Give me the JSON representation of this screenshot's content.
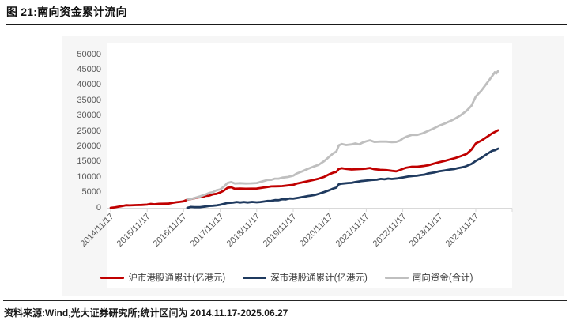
{
  "page": {
    "title": "图 21:南向资金累计流向",
    "source_note": "资料来源:Wind,光大证券研究所;统计区间为 2014.11.17-2025.06.27"
  },
  "colors": {
    "shanghai_red": "#C00000",
    "shenzhen_navy": "#1F3A5F",
    "total_gray": "#BFBFBF",
    "axis_line": "#D9D9D9",
    "axis_label": "#595959",
    "legend_text": "#404040",
    "figure_bg": "#F6F6F6",
    "title_rule": "#1A1A1A"
  },
  "chart_data": {
    "type": "line",
    "title": "南向资金累计流向",
    "xlabel": "",
    "ylabel": "",
    "ylim": [
      0,
      50000
    ],
    "y_ticks": [
      0,
      5000,
      10000,
      15000,
      20000,
      25000,
      30000,
      35000,
      40000,
      45000,
      50000
    ],
    "x_tick_labels": [
      "2014/11/17",
      "2015/11/17",
      "2016/11/17",
      "2017/11/17",
      "2018/11/17",
      "2019/11/17",
      "2020/11/17",
      "2021/11/17",
      "2022/11/17",
      "2023/11/17",
      "2024/11/17"
    ],
    "x_unit_note": "points use t = years since 2014/11/17; data range 2014.11.17-2025.06.27",
    "grid": false,
    "legend_position": "bottom",
    "series": [
      {
        "name": "沪市港股通累计(亿港元)",
        "color": "#C00000",
        "points": [
          [
            0,
            0
          ],
          [
            0.12,
            150
          ],
          [
            0.3,
            550
          ],
          [
            0.42,
            850
          ],
          [
            0.52,
            800
          ],
          [
            0.7,
            900
          ],
          [
            0.85,
            950
          ],
          [
            1,
            1050
          ],
          [
            1.2,
            1150
          ],
          [
            1.45,
            1350
          ],
          [
            1.7,
            1650
          ],
          [
            1.9,
            1950
          ],
          [
            2,
            2150
          ],
          [
            2.1,
            2650
          ],
          [
            2.25,
            3000
          ],
          [
            2.4,
            3400
          ],
          [
            2.6,
            3900
          ],
          [
            2.8,
            4400
          ],
          [
            3,
            5000
          ],
          [
            3.1,
            5600
          ],
          [
            3.2,
            6500
          ],
          [
            3.3,
            6700
          ],
          [
            3.4,
            6200
          ],
          [
            3.55,
            6300
          ],
          [
            3.7,
            6200
          ],
          [
            3.85,
            6250
          ],
          [
            4,
            6300
          ],
          [
            4.15,
            6550
          ],
          [
            4.3,
            6800
          ],
          [
            4.5,
            7000
          ],
          [
            4.7,
            7100
          ],
          [
            4.85,
            7300
          ],
          [
            5,
            7500
          ],
          [
            5.1,
            7900
          ],
          [
            5.25,
            8300
          ],
          [
            5.4,
            8700
          ],
          [
            5.55,
            9100
          ],
          [
            5.7,
            9500
          ],
          [
            5.85,
            10100
          ],
          [
            6,
            11000
          ],
          [
            6.1,
            11500
          ],
          [
            6.18,
            11700
          ],
          [
            6.25,
            12700
          ],
          [
            6.33,
            12900
          ],
          [
            6.45,
            12700
          ],
          [
            6.6,
            12500
          ],
          [
            6.75,
            12600
          ],
          [
            6.9,
            12700
          ],
          [
            7,
            12800
          ],
          [
            7.1,
            13000
          ],
          [
            7.22,
            12600
          ],
          [
            7.38,
            12400
          ],
          [
            7.55,
            12300
          ],
          [
            7.7,
            12050
          ],
          [
            7.82,
            11900
          ],
          [
            7.92,
            12300
          ],
          [
            8,
            12700
          ],
          [
            8.1,
            13100
          ],
          [
            8.25,
            13400
          ],
          [
            8.4,
            13400
          ],
          [
            8.55,
            13600
          ],
          [
            8.7,
            13900
          ],
          [
            8.85,
            14400
          ],
          [
            9,
            14900
          ],
          [
            9.15,
            15300
          ],
          [
            9.3,
            15800
          ],
          [
            9.45,
            16300
          ],
          [
            9.6,
            16900
          ],
          [
            9.75,
            17600
          ],
          [
            9.88,
            19000
          ],
          [
            10,
            21000
          ],
          [
            10.15,
            21900
          ],
          [
            10.3,
            23100
          ],
          [
            10.45,
            24300
          ],
          [
            10.55,
            24900
          ],
          [
            10.61,
            25300
          ]
        ]
      },
      {
        "name": "深市港股通累计(亿港元)",
        "color": "#1F3A5F",
        "points": [
          [
            2.1,
            0
          ],
          [
            2.3,
            200
          ],
          [
            2.6,
            450
          ],
          [
            2.8,
            700
          ],
          [
            3,
            1000
          ],
          [
            3.1,
            1300
          ],
          [
            3.2,
            1600
          ],
          [
            3.35,
            1700
          ],
          [
            3.55,
            1750
          ],
          [
            3.75,
            1750
          ],
          [
            4,
            1800
          ],
          [
            4.2,
            2050
          ],
          [
            4.4,
            2300
          ],
          [
            4.6,
            2500
          ],
          [
            4.8,
            2750
          ],
          [
            5,
            3000
          ],
          [
            5.15,
            3300
          ],
          [
            5.3,
            3600
          ],
          [
            5.5,
            4000
          ],
          [
            5.7,
            4550
          ],
          [
            5.85,
            5150
          ],
          [
            6,
            5800
          ],
          [
            6.1,
            6300
          ],
          [
            6.18,
            6600
          ],
          [
            6.25,
            7700
          ],
          [
            6.35,
            7900
          ],
          [
            6.5,
            8100
          ],
          [
            6.7,
            8400
          ],
          [
            6.85,
            8700
          ],
          [
            7,
            8900
          ],
          [
            7.15,
            9100
          ],
          [
            7.3,
            9200
          ],
          [
            7.5,
            9300
          ],
          [
            7.7,
            9400
          ],
          [
            7.85,
            9600
          ],
          [
            8,
            9900
          ],
          [
            8.15,
            10200
          ],
          [
            8.3,
            10400
          ],
          [
            8.5,
            10700
          ],
          [
            8.7,
            11200
          ],
          [
            8.85,
            11500
          ],
          [
            9,
            11900
          ],
          [
            9.15,
            12200
          ],
          [
            9.3,
            12500
          ],
          [
            9.5,
            12900
          ],
          [
            9.7,
            13400
          ],
          [
            9.88,
            14300
          ],
          [
            10,
            15300
          ],
          [
            10.15,
            16300
          ],
          [
            10.3,
            17500
          ],
          [
            10.45,
            18600
          ],
          [
            10.52,
            18800
          ],
          [
            10.61,
            19300
          ]
        ]
      },
      {
        "name": "南向资金(合计)",
        "color": "#BFBFBF",
        "points": [
          [
            2.1,
            2700
          ],
          [
            2.3,
            3200
          ],
          [
            2.6,
            4350
          ],
          [
            2.8,
            5100
          ],
          [
            3,
            6000
          ],
          [
            3.1,
            6900
          ],
          [
            3.2,
            8100
          ],
          [
            3.3,
            8400
          ],
          [
            3.4,
            7950
          ],
          [
            3.55,
            8050
          ],
          [
            3.7,
            7950
          ],
          [
            3.85,
            8000
          ],
          [
            4,
            8100
          ],
          [
            4.15,
            8600
          ],
          [
            4.3,
            9100
          ],
          [
            4.5,
            9500
          ],
          [
            4.7,
            9850
          ],
          [
            4.85,
            10050
          ],
          [
            5,
            10500
          ],
          [
            5.1,
            11200
          ],
          [
            5.25,
            11900
          ],
          [
            5.4,
            12700
          ],
          [
            5.55,
            13400
          ],
          [
            5.7,
            14050
          ],
          [
            5.85,
            15250
          ],
          [
            6,
            16800
          ],
          [
            6.1,
            17800
          ],
          [
            6.18,
            18300
          ],
          [
            6.25,
            20400
          ],
          [
            6.33,
            20800
          ],
          [
            6.45,
            20500
          ],
          [
            6.6,
            20700
          ],
          [
            6.7,
            21000
          ],
          [
            6.8,
            20700
          ],
          [
            6.9,
            21300
          ],
          [
            7,
            21700
          ],
          [
            7.1,
            22000
          ],
          [
            7.22,
            21500
          ],
          [
            7.38,
            21600
          ],
          [
            7.55,
            21600
          ],
          [
            7.7,
            21450
          ],
          [
            7.82,
            21500
          ],
          [
            7.92,
            21900
          ],
          [
            8,
            22600
          ],
          [
            8.1,
            23200
          ],
          [
            8.25,
            23800
          ],
          [
            8.4,
            23800
          ],
          [
            8.55,
            24300
          ],
          [
            8.7,
            25100
          ],
          [
            8.85,
            25900
          ],
          [
            9,
            26800
          ],
          [
            9.15,
            27500
          ],
          [
            9.3,
            28300
          ],
          [
            9.45,
            29200
          ],
          [
            9.6,
            30300
          ],
          [
            9.75,
            31700
          ],
          [
            9.88,
            33300
          ],
          [
            10,
            36300
          ],
          [
            10.15,
            38200
          ],
          [
            10.3,
            40600
          ],
          [
            10.45,
            43000
          ],
          [
            10.52,
            44200
          ],
          [
            10.56,
            43800
          ],
          [
            10.61,
            44600
          ]
        ]
      }
    ]
  }
}
